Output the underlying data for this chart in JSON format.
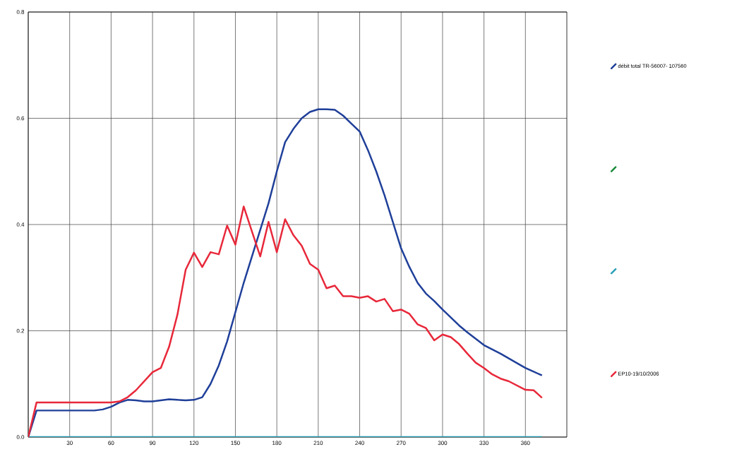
{
  "chart_data": {
    "type": "line",
    "x": [
      0,
      6,
      12,
      18,
      24,
      30,
      36,
      42,
      48,
      54,
      60,
      66,
      72,
      78,
      84,
      90,
      96,
      102,
      108,
      114,
      120,
      126,
      132,
      138,
      144,
      150,
      156,
      162,
      168,
      174,
      180,
      186,
      192,
      198,
      204,
      210,
      216,
      222,
      228,
      234,
      240,
      246,
      252,
      258,
      264,
      270,
      276,
      282,
      288,
      294,
      300,
      306,
      312,
      318,
      324,
      330,
      336,
      342,
      348,
      354,
      360,
      366,
      372
    ],
    "series": [
      {
        "name": "débit total TR-56007- 107560",
        "color": "#1f3f99",
        "values": [
          0,
          0.05,
          0.05,
          0.05,
          0.05,
          0.05,
          0.05,
          0.05,
          0.05,
          0.052,
          0.057,
          0.065,
          0.07,
          0.069,
          0.067,
          0.067,
          0.069,
          0.071,
          0.07,
          0.069,
          0.07,
          0.075,
          0.1,
          0.135,
          0.18,
          0.235,
          0.29,
          0.34,
          0.39,
          0.44,
          0.5,
          0.555,
          0.58,
          0.6,
          0.612,
          0.617,
          0.617,
          0.616,
          0.605,
          0.59,
          0.575,
          0.54,
          0.5,
          0.455,
          0.405,
          0.355,
          0.32,
          0.29,
          0.27,
          0.256,
          0.24,
          0.225,
          0.21,
          0.197,
          0.185,
          0.173,
          0.165,
          0.157,
          0.148,
          0.139,
          0.13,
          0.123,
          0.116
        ]
      },
      {
        "color": "#1a8a3a",
        "values": [
          null,
          null,
          null,
          null,
          null,
          null,
          null,
          null,
          null,
          null,
          null,
          null,
          null,
          null,
          null,
          null,
          null,
          null,
          null,
          null,
          null,
          null,
          null,
          null,
          null,
          null,
          null,
          null,
          null,
          null,
          null,
          null,
          null,
          null,
          null,
          null,
          null,
          null,
          null,
          null,
          null,
          null,
          null,
          null,
          null,
          null,
          null,
          null,
          null,
          null,
          null,
          null,
          null,
          null,
          null,
          null,
          null,
          null,
          null,
          null,
          null,
          null,
          null
        ]
      },
      {
        "color": "#2a9fb8",
        "values": [
          0,
          0,
          0,
          0,
          0,
          0,
          0,
          0,
          0,
          0,
          0,
          0,
          0,
          0,
          0,
          0,
          0,
          0,
          0,
          0,
          0,
          0,
          0,
          0,
          0,
          0,
          0,
          0,
          0,
          0,
          0,
          0,
          0,
          0,
          0,
          0,
          0,
          0,
          0,
          0,
          0,
          0,
          0,
          0,
          0,
          0,
          0,
          0,
          0,
          0,
          0,
          0,
          0,
          0,
          0,
          0,
          0,
          0,
          0,
          0,
          0,
          0,
          0
        ]
      },
      {
        "name": "EP10-19/10/2006",
        "color": "#e8283a",
        "values": [
          0,
          0.065,
          0.065,
          0.065,
          0.065,
          0.065,
          0.065,
          0.065,
          0.065,
          0.065,
          0.065,
          0.067,
          0.075,
          0.088,
          0.105,
          0.122,
          0.13,
          0.17,
          0.23,
          0.315,
          0.347,
          0.32,
          0.348,
          0.344,
          0.398,
          0.362,
          0.434,
          0.387,
          0.34,
          0.405,
          0.348,
          0.41,
          0.38,
          0.36,
          0.326,
          0.315,
          0.28,
          0.285,
          0.265,
          0.265,
          0.262,
          0.265,
          0.255,
          0.26,
          0.237,
          0.24,
          0.232,
          0.212,
          0.205,
          0.182,
          0.193,
          0.188,
          0.175,
          0.157,
          0.14,
          0.13,
          0.118,
          0.11,
          0.105,
          0.097,
          0.089,
          0.088,
          0.074
        ]
      }
    ],
    "xlim": [
      0,
      390
    ],
    "ylim": [
      0,
      0.8
    ],
    "xticks": [
      {
        "value": 0,
        "label": null
      },
      30,
      60,
      90,
      120,
      150,
      180,
      210,
      240,
      270,
      300,
      330,
      360
    ],
    "yticks": [
      {
        "value": 0,
        "label": "0.0"
      },
      {
        "value": 0.2,
        "label": "0.2"
      },
      {
        "value": 0.4,
        "label": "0.4"
      },
      {
        "value": 0.6,
        "label": "0.6"
      },
      {
        "value": 0.8,
        "label": "0.8"
      }
    ],
    "grid": true,
    "legend": "right",
    "marker": "none",
    "line_style": "solid"
  }
}
